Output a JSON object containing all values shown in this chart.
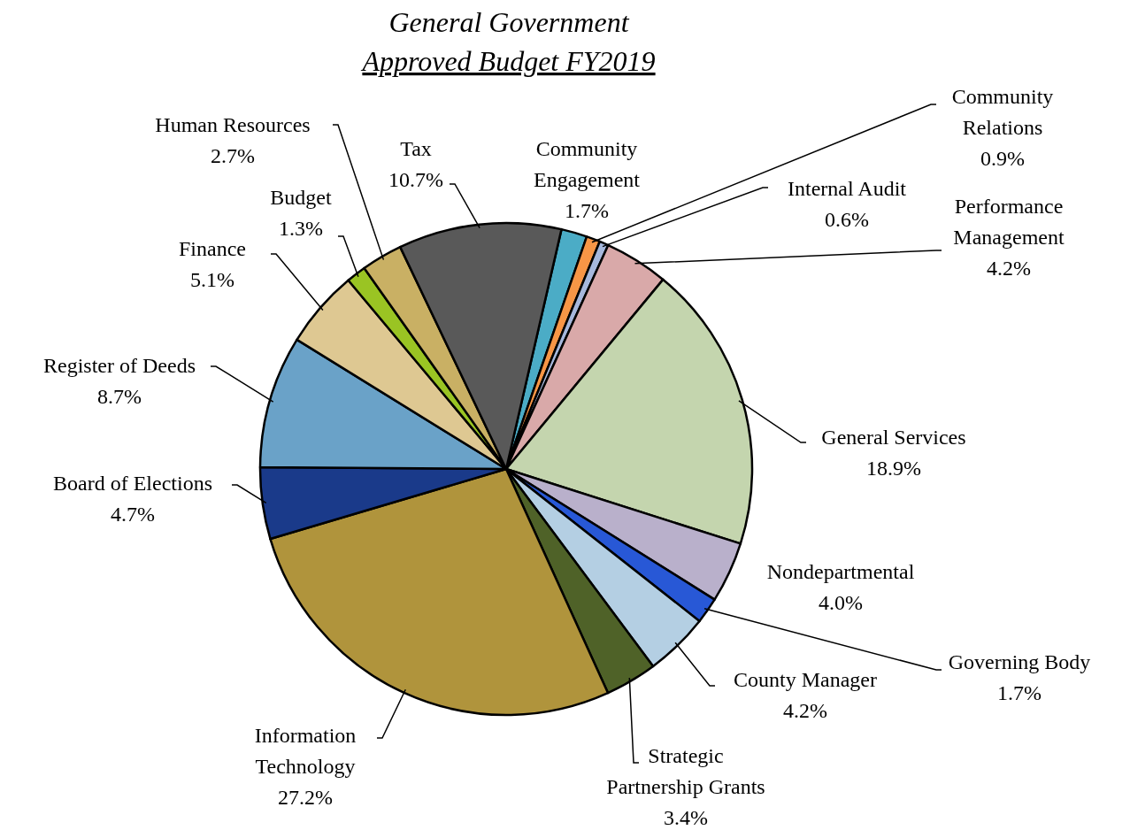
{
  "chart_data": {
    "type": "pie",
    "title": "General Government",
    "subtitle": "Approved Budget FY2019",
    "categories": [
      "Community Engagement",
      "Community Relations",
      "Internal Audit",
      "Performance Management",
      "General Services",
      "Nondepartmental",
      "Governing Body",
      "County Manager",
      "Strategic Partnership Grants",
      "Information Technology",
      "Board of Elections",
      "Register of Deeds",
      "Finance",
      "Budget",
      "Human Resources",
      "Tax"
    ],
    "values": [
      1.7,
      0.9,
      0.6,
      4.2,
      18.9,
      4.0,
      1.7,
      4.2,
      3.4,
      27.2,
      4.7,
      8.7,
      5.1,
      1.3,
      2.7,
      10.7
    ],
    "value_labels": [
      "1.7%",
      "0.9%",
      "0.6%",
      "4.2%",
      "18.9%",
      "4.0%",
      "1.7%",
      "4.2%",
      "3.4%",
      "27.2%",
      "4.7%",
      "8.7%",
      "5.1%",
      "1.3%",
      "2.7%",
      "10.7%"
    ],
    "colors": [
      "#4bacc6",
      "#f79646",
      "#a6b8dc",
      "#d9a9a9",
      "#c4d5ae",
      "#b9b0cb",
      "#2858d6",
      "#b4cfe3",
      "#4f6228",
      "#b0943c",
      "#1a3a8a",
      "#6aa2c8",
      "#dec892",
      "#9ac423",
      "#c9b064",
      "#595959"
    ]
  }
}
